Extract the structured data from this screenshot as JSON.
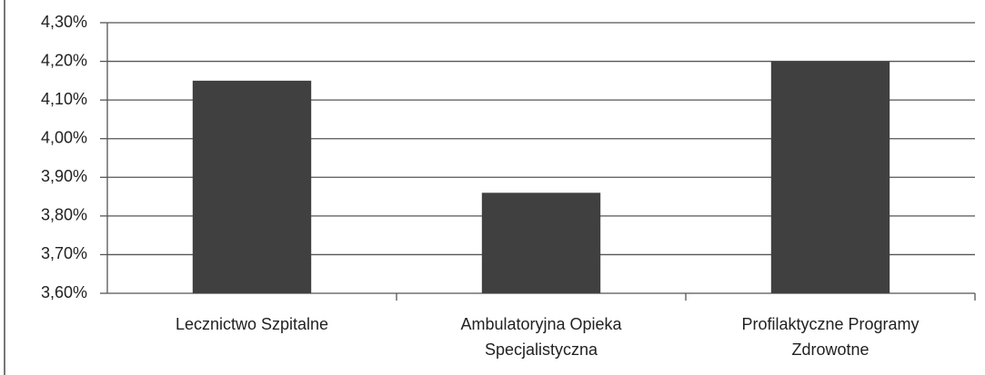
{
  "chart_data": {
    "type": "bar",
    "categories": [
      "Lecznictwo Szpitalne",
      "Ambulatoryjna Opieka\nSpecjalistyczna",
      "Profilaktyczne Programy\nZdrowotne"
    ],
    "values": [
      4.15,
      3.86,
      4.2
    ],
    "color": "#404040",
    "ylim": [
      3.6,
      4.3
    ],
    "yticks": [
      {
        "value": 3.6,
        "label": "3,60%"
      },
      {
        "value": 3.7,
        "label": "3,70%"
      },
      {
        "value": 3.8,
        "label": "3,80%"
      },
      {
        "value": 3.9,
        "label": "3,90%"
      },
      {
        "value": 4.0,
        "label": "4,00%"
      },
      {
        "value": 4.1,
        "label": "4,10%"
      },
      {
        "value": 4.2,
        "label": "4,20%"
      },
      {
        "value": 4.3,
        "label": "4,30%"
      }
    ],
    "grid": true
  }
}
